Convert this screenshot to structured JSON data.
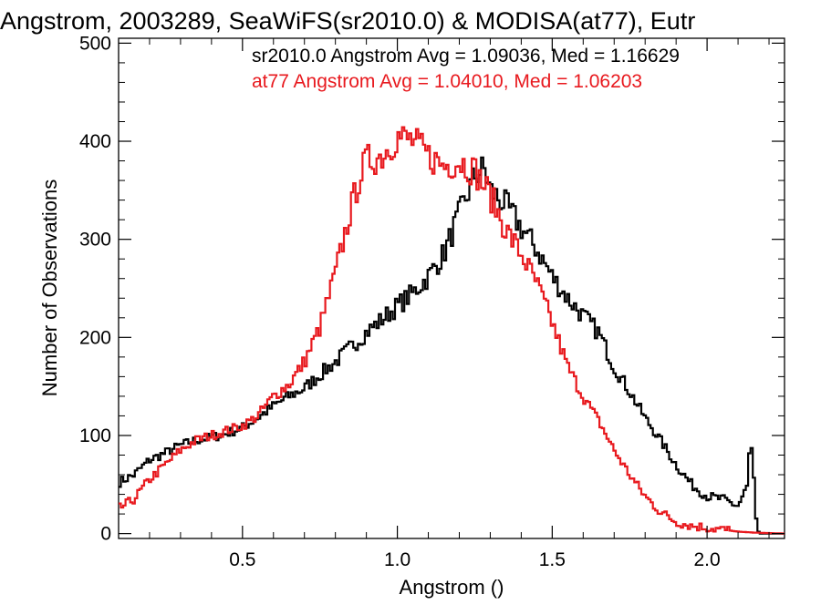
{
  "chart_data": {
    "type": "line",
    "title": "Angstrom, 2003289, SeaWiFS(sr2010.0) & MODISA(at77), Eutr",
    "xlabel": "Angstrom ()",
    "ylabel": "Number of Observations",
    "xlim": [
      0.1,
      2.25
    ],
    "ylim": [
      -5,
      505
    ],
    "xticks": [
      "0.5",
      "1.0",
      "1.5",
      "2.0"
    ],
    "yticks": [
      "0",
      "100",
      "200",
      "300",
      "400",
      "500"
    ],
    "grid": false,
    "annotations": [
      {
        "text": "sr2010.0 Angstrom Avg = 1.09036, Med = 1.16629",
        "color": "#000000"
      },
      {
        "text": "at77 Angstrom Avg = 1.04010, Med = 1.06203",
        "color": "#e8191e"
      }
    ],
    "series": [
      {
        "name": "sr2010.0",
        "color": "#000000",
        "step": true,
        "points": [
          [
            0.1,
            52
          ],
          [
            0.15,
            60
          ],
          [
            0.2,
            75
          ],
          [
            0.25,
            82
          ],
          [
            0.3,
            90
          ],
          [
            0.35,
            95
          ],
          [
            0.4,
            98
          ],
          [
            0.45,
            102
          ],
          [
            0.5,
            108
          ],
          [
            0.55,
            118
          ],
          [
            0.6,
            130
          ],
          [
            0.65,
            140
          ],
          [
            0.7,
            148
          ],
          [
            0.75,
            162
          ],
          [
            0.8,
            175
          ],
          [
            0.85,
            190
          ],
          [
            0.9,
            205
          ],
          [
            0.95,
            218
          ],
          [
            1.0,
            232
          ],
          [
            1.05,
            245
          ],
          [
            1.1,
            262
          ],
          [
            1.15,
            285
          ],
          [
            1.2,
            325
          ],
          [
            1.25,
            365
          ],
          [
            1.28,
            372
          ],
          [
            1.3,
            350
          ],
          [
            1.35,
            335
          ],
          [
            1.4,
            312
          ],
          [
            1.45,
            290
          ],
          [
            1.5,
            262
          ],
          [
            1.55,
            240
          ],
          [
            1.6,
            222
          ],
          [
            1.65,
            205
          ],
          [
            1.7,
            170
          ],
          [
            1.75,
            145
          ],
          [
            1.8,
            118
          ],
          [
            1.85,
            95
          ],
          [
            1.9,
            70
          ],
          [
            1.95,
            50
          ],
          [
            2.0,
            38
          ],
          [
            2.05,
            35
          ],
          [
            2.1,
            28
          ],
          [
            2.13,
            48
          ],
          [
            2.14,
            100
          ],
          [
            2.15,
            60
          ],
          [
            2.16,
            5
          ],
          [
            2.17,
            0
          ],
          [
            2.25,
            0
          ]
        ]
      },
      {
        "name": "at77",
        "color": "#e8191e",
        "step": true,
        "points": [
          [
            0.1,
            25
          ],
          [
            0.15,
            35
          ],
          [
            0.2,
            55
          ],
          [
            0.25,
            70
          ],
          [
            0.3,
            85
          ],
          [
            0.35,
            95
          ],
          [
            0.4,
            100
          ],
          [
            0.45,
            105
          ],
          [
            0.5,
            110
          ],
          [
            0.55,
            120
          ],
          [
            0.6,
            140
          ],
          [
            0.65,
            152
          ],
          [
            0.7,
            175
          ],
          [
            0.75,
            210
          ],
          [
            0.8,
            265
          ],
          [
            0.85,
            330
          ],
          [
            0.88,
            365
          ],
          [
            0.9,
            380
          ],
          [
            0.95,
            385
          ],
          [
            1.0,
            405
          ],
          [
            1.05,
            400
          ],
          [
            1.1,
            385
          ],
          [
            1.15,
            375
          ],
          [
            1.2,
            380
          ],
          [
            1.25,
            370
          ],
          [
            1.3,
            345
          ],
          [
            1.35,
            310
          ],
          [
            1.4,
            285
          ],
          [
            1.45,
            255
          ],
          [
            1.5,
            215
          ],
          [
            1.55,
            170
          ],
          [
            1.6,
            140
          ],
          [
            1.65,
            115
          ],
          [
            1.7,
            85
          ],
          [
            1.75,
            60
          ],
          [
            1.8,
            38
          ],
          [
            1.85,
            22
          ],
          [
            1.9,
            12
          ],
          [
            1.95,
            8
          ],
          [
            2.0,
            6
          ],
          [
            2.05,
            4
          ],
          [
            2.1,
            2
          ],
          [
            2.15,
            1
          ],
          [
            2.25,
            0
          ]
        ]
      }
    ]
  }
}
